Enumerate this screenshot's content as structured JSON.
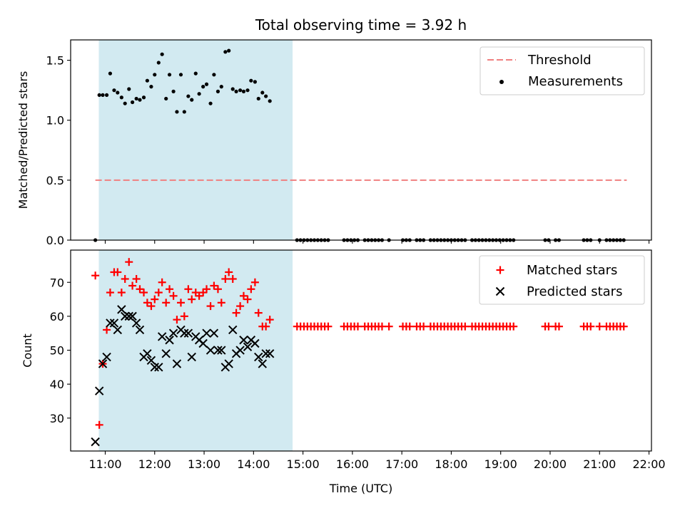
{
  "chart_data": {
    "type": "scatter",
    "title": "Total observing time = 3.92 h",
    "xlabel": "Time (UTC)",
    "x_ticks": [
      "11:00",
      "12:00",
      "13:00",
      "14:00",
      "15:00",
      "16:00",
      "17:00",
      "18:00",
      "19:00",
      "20:00",
      "21:00",
      "22:00"
    ],
    "x_range_hours": [
      10.3,
      22.05
    ],
    "shaded_interval_hours": [
      10.87,
      14.79
    ],
    "shade_color": "#add8e6",
    "top_panel": {
      "ylabel": "Matched/Predicted stars",
      "ylim": [
        0,
        1.67
      ],
      "y_ticks": [
        0.0,
        0.5,
        1.0,
        1.5
      ],
      "threshold": {
        "name": "Threshold",
        "value": 0.5,
        "x_start": 10.8,
        "x_end": 21.55,
        "color": "#f08080"
      },
      "measurements_name": "Measurements",
      "legend": "top-right",
      "measurements": [
        [
          10.8,
          0.0
        ],
        [
          10.88,
          1.21
        ],
        [
          10.95,
          1.21
        ],
        [
          11.03,
          1.21
        ],
        [
          11.1,
          1.39
        ],
        [
          11.18,
          1.25
        ],
        [
          11.25,
          1.23
        ],
        [
          11.33,
          1.19
        ],
        [
          11.4,
          1.14
        ],
        [
          11.48,
          1.26
        ],
        [
          11.55,
          1.15
        ],
        [
          11.63,
          1.18
        ],
        [
          11.7,
          1.17
        ],
        [
          11.78,
          1.19
        ],
        [
          11.85,
          1.33
        ],
        [
          11.93,
          1.28
        ],
        [
          12.0,
          1.38
        ],
        [
          12.08,
          1.48
        ],
        [
          12.15,
          1.55
        ],
        [
          12.23,
          1.18
        ],
        [
          12.3,
          1.38
        ],
        [
          12.38,
          1.24
        ],
        [
          12.45,
          1.07
        ],
        [
          12.53,
          1.38
        ],
        [
          12.6,
          1.07
        ],
        [
          12.68,
          1.2
        ],
        [
          12.75,
          1.17
        ],
        [
          12.83,
          1.39
        ],
        [
          12.9,
          1.22
        ],
        [
          12.98,
          1.28
        ],
        [
          13.05,
          1.3
        ],
        [
          13.13,
          1.14
        ],
        [
          13.2,
          1.38
        ],
        [
          13.28,
          1.24
        ],
        [
          13.35,
          1.28
        ],
        [
          13.43,
          1.57
        ],
        [
          13.5,
          1.58
        ],
        [
          13.58,
          1.26
        ],
        [
          13.65,
          1.24
        ],
        [
          13.73,
          1.25
        ],
        [
          13.8,
          1.24
        ],
        [
          13.88,
          1.25
        ],
        [
          13.95,
          1.33
        ],
        [
          14.03,
          1.32
        ],
        [
          14.1,
          1.18
        ],
        [
          14.18,
          1.23
        ],
        [
          14.25,
          1.2
        ],
        [
          14.33,
          1.16
        ],
        [
          14.88,
          0
        ],
        [
          14.95,
          0
        ],
        [
          15.02,
          0
        ],
        [
          15.09,
          0
        ],
        [
          15.16,
          0
        ],
        [
          15.23,
          0
        ],
        [
          15.3,
          0
        ],
        [
          15.37,
          0
        ],
        [
          15.44,
          0
        ],
        [
          15.51,
          0
        ],
        [
          15.83,
          0
        ],
        [
          15.9,
          0
        ],
        [
          15.97,
          0
        ],
        [
          16.04,
          0
        ],
        [
          16.11,
          0
        ],
        [
          16.25,
          0
        ],
        [
          16.32,
          0
        ],
        [
          16.39,
          0
        ],
        [
          16.46,
          0
        ],
        [
          16.53,
          0
        ],
        [
          16.6,
          0
        ],
        [
          16.74,
          0
        ],
        [
          17.02,
          0
        ],
        [
          17.09,
          0
        ],
        [
          17.16,
          0
        ],
        [
          17.3,
          0
        ],
        [
          17.37,
          0
        ],
        [
          17.44,
          0
        ],
        [
          17.58,
          0
        ],
        [
          17.65,
          0
        ],
        [
          17.72,
          0
        ],
        [
          17.79,
          0
        ],
        [
          17.86,
          0
        ],
        [
          17.93,
          0
        ],
        [
          18.0,
          0
        ],
        [
          18.07,
          0
        ],
        [
          18.14,
          0
        ],
        [
          18.21,
          0
        ],
        [
          18.28,
          0
        ],
        [
          18.42,
          0
        ],
        [
          18.49,
          0
        ],
        [
          18.56,
          0
        ],
        [
          18.63,
          0
        ],
        [
          18.7,
          0
        ],
        [
          18.77,
          0
        ],
        [
          18.84,
          0
        ],
        [
          18.91,
          0
        ],
        [
          18.98,
          0
        ],
        [
          19.05,
          0
        ],
        [
          19.12,
          0
        ],
        [
          19.19,
          0
        ],
        [
          19.26,
          0
        ],
        [
          19.9,
          0
        ],
        [
          19.97,
          0
        ],
        [
          20.11,
          0
        ],
        [
          20.18,
          0
        ],
        [
          20.68,
          0
        ],
        [
          20.75,
          0
        ],
        [
          20.82,
          0
        ],
        [
          21.0,
          0
        ],
        [
          21.14,
          0
        ],
        [
          21.21,
          0
        ],
        [
          21.28,
          0
        ],
        [
          21.35,
          0
        ],
        [
          21.42,
          0
        ],
        [
          21.49,
          0
        ]
      ]
    },
    "bottom_panel": {
      "ylabel": "Count",
      "ylim": [
        20.3,
        79.5
      ],
      "y_ticks": [
        30,
        40,
        50,
        60,
        70
      ],
      "legend": "top-right",
      "series": [
        {
          "name": "Matched stars",
          "marker": "+",
          "color": "#ff0000",
          "points": [
            [
              10.8,
              72
            ],
            [
              10.88,
              28
            ],
            [
              10.95,
              46
            ],
            [
              11.03,
              56
            ],
            [
              11.1,
              67
            ],
            [
              11.18,
              73
            ],
            [
              11.25,
              73
            ],
            [
              11.33,
              67
            ],
            [
              11.4,
              71
            ],
            [
              11.48,
              76
            ],
            [
              11.55,
              69
            ],
            [
              11.63,
              71
            ],
            [
              11.7,
              68
            ],
            [
              11.78,
              67
            ],
            [
              11.85,
              64
            ],
            [
              11.93,
              63
            ],
            [
              12.0,
              65
            ],
            [
              12.08,
              67
            ],
            [
              12.15,
              70
            ],
            [
              12.23,
              64
            ],
            [
              12.3,
              68
            ],
            [
              12.38,
              66
            ],
            [
              12.45,
              59
            ],
            [
              12.53,
              64
            ],
            [
              12.6,
              60
            ],
            [
              12.68,
              68
            ],
            [
              12.75,
              65
            ],
            [
              12.83,
              67
            ],
            [
              12.9,
              66
            ],
            [
              12.98,
              67
            ],
            [
              13.05,
              68
            ],
            [
              13.13,
              63
            ],
            [
              13.2,
              69
            ],
            [
              13.28,
              68
            ],
            [
              13.35,
              64
            ],
            [
              13.43,
              71
            ],
            [
              13.5,
              73
            ],
            [
              13.58,
              71
            ],
            [
              13.65,
              61
            ],
            [
              13.73,
              63
            ],
            [
              13.8,
              66
            ],
            [
              13.88,
              65
            ],
            [
              13.95,
              68
            ],
            [
              14.03,
              70
            ],
            [
              14.1,
              61
            ],
            [
              14.18,
              57
            ],
            [
              14.25,
              57
            ],
            [
              14.33,
              59
            ],
            [
              14.88,
              57
            ],
            [
              14.95,
              57
            ],
            [
              15.02,
              57
            ],
            [
              15.09,
              57
            ],
            [
              15.16,
              57
            ],
            [
              15.23,
              57
            ],
            [
              15.3,
              57
            ],
            [
              15.37,
              57
            ],
            [
              15.44,
              57
            ],
            [
              15.51,
              57
            ],
            [
              15.83,
              57
            ],
            [
              15.9,
              57
            ],
            [
              15.97,
              57
            ],
            [
              16.04,
              57
            ],
            [
              16.11,
              57
            ],
            [
              16.25,
              57
            ],
            [
              16.32,
              57
            ],
            [
              16.39,
              57
            ],
            [
              16.46,
              57
            ],
            [
              16.53,
              57
            ],
            [
              16.6,
              57
            ],
            [
              16.74,
              57
            ],
            [
              17.02,
              57
            ],
            [
              17.09,
              57
            ],
            [
              17.16,
              57
            ],
            [
              17.3,
              57
            ],
            [
              17.37,
              57
            ],
            [
              17.44,
              57
            ],
            [
              17.58,
              57
            ],
            [
              17.65,
              57
            ],
            [
              17.72,
              57
            ],
            [
              17.79,
              57
            ],
            [
              17.86,
              57
            ],
            [
              17.93,
              57
            ],
            [
              18.0,
              57
            ],
            [
              18.07,
              57
            ],
            [
              18.14,
              57
            ],
            [
              18.21,
              57
            ],
            [
              18.28,
              57
            ],
            [
              18.42,
              57
            ],
            [
              18.49,
              57
            ],
            [
              18.56,
              57
            ],
            [
              18.63,
              57
            ],
            [
              18.7,
              57
            ],
            [
              18.77,
              57
            ],
            [
              18.84,
              57
            ],
            [
              18.91,
              57
            ],
            [
              18.98,
              57
            ],
            [
              19.05,
              57
            ],
            [
              19.12,
              57
            ],
            [
              19.19,
              57
            ],
            [
              19.26,
              57
            ],
            [
              19.9,
              57
            ],
            [
              19.97,
              57
            ],
            [
              20.11,
              57
            ],
            [
              20.18,
              57
            ],
            [
              20.68,
              57
            ],
            [
              20.75,
              57
            ],
            [
              20.82,
              57
            ],
            [
              21.0,
              57
            ],
            [
              21.14,
              57
            ],
            [
              21.21,
              57
            ],
            [
              21.28,
              57
            ],
            [
              21.35,
              57
            ],
            [
              21.42,
              57
            ],
            [
              21.49,
              57
            ]
          ]
        },
        {
          "name": "Predicted stars",
          "marker": "x",
          "color": "#000000",
          "points": [
            [
              10.8,
              23
            ],
            [
              10.88,
              38
            ],
            [
              10.95,
              46
            ],
            [
              11.03,
              48
            ],
            [
              11.1,
              58
            ],
            [
              11.18,
              58
            ],
            [
              11.25,
              56
            ],
            [
              11.33,
              62
            ],
            [
              11.4,
              60
            ],
            [
              11.48,
              60
            ],
            [
              11.55,
              60
            ],
            [
              11.63,
              58
            ],
            [
              11.7,
              56
            ],
            [
              11.78,
              48
            ],
            [
              11.85,
              49
            ],
            [
              11.93,
              47
            ],
            [
              12.0,
              45
            ],
            [
              12.08,
              45
            ],
            [
              12.15,
              54
            ],
            [
              12.23,
              49
            ],
            [
              12.3,
              53
            ],
            [
              12.38,
              55
            ],
            [
              12.45,
              46
            ],
            [
              12.53,
              56
            ],
            [
              12.6,
              55
            ],
            [
              12.68,
              55
            ],
            [
              12.75,
              48
            ],
            [
              12.83,
              54
            ],
            [
              12.9,
              53
            ],
            [
              12.98,
              52
            ],
            [
              13.05,
              55
            ],
            [
              13.13,
              50
            ],
            [
              13.2,
              55
            ],
            [
              13.28,
              50
            ],
            [
              13.35,
              50
            ],
            [
              13.43,
              45
            ],
            [
              13.5,
              46
            ],
            [
              13.58,
              56
            ],
            [
              13.65,
              49
            ],
            [
              13.73,
              50
            ],
            [
              13.8,
              53
            ],
            [
              13.88,
              51
            ],
            [
              13.95,
              53
            ],
            [
              14.03,
              52
            ],
            [
              14.1,
              48
            ],
            [
              14.18,
              46
            ],
            [
              14.25,
              49
            ],
            [
              14.33,
              49
            ]
          ]
        }
      ]
    }
  }
}
